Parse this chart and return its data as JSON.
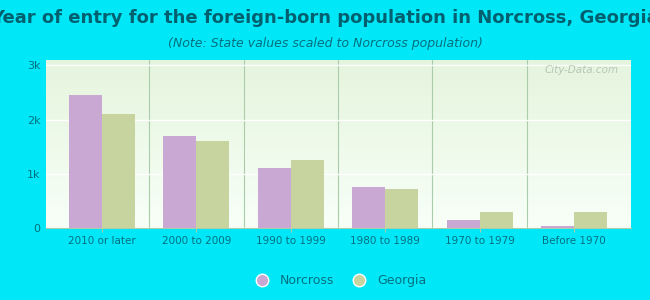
{
  "title": "Year of entry for the foreign-born population in Norcross, Georgia",
  "subtitle": "(Note: State values scaled to Norcross population)",
  "categories": [
    "2010 or later",
    "2000 to 2009",
    "1990 to 1999",
    "1980 to 1989",
    "1970 to 1979",
    "Before 1970"
  ],
  "norcross_values": [
    2450,
    1700,
    1100,
    750,
    150,
    30
  ],
  "georgia_values": [
    2100,
    1600,
    1250,
    720,
    300,
    290
  ],
  "norcross_color": "#c9a8d4",
  "georgia_color": "#c8d4a0",
  "background_color": "#00e8f8",
  "title_color": "#006070",
  "subtitle_color": "#007080",
  "tick_color": "#007080",
  "title_fontsize": 13,
  "subtitle_fontsize": 9,
  "ytick_labels": [
    "0",
    "1k",
    "2k",
    "3k"
  ],
  "ytick_values": [
    0,
    1000,
    2000,
    3000
  ],
  "ylim": [
    0,
    3100
  ],
  "bar_width": 0.35,
  "legend_norcross": "Norcross",
  "legend_georgia": "Georgia",
  "watermark": "City-Data.com",
  "separator_color": "#aaccaa",
  "grid_color": "#ddeecc",
  "plot_bg_bottom": "#f0faf0",
  "plot_bg_top": "#e8f5e0"
}
